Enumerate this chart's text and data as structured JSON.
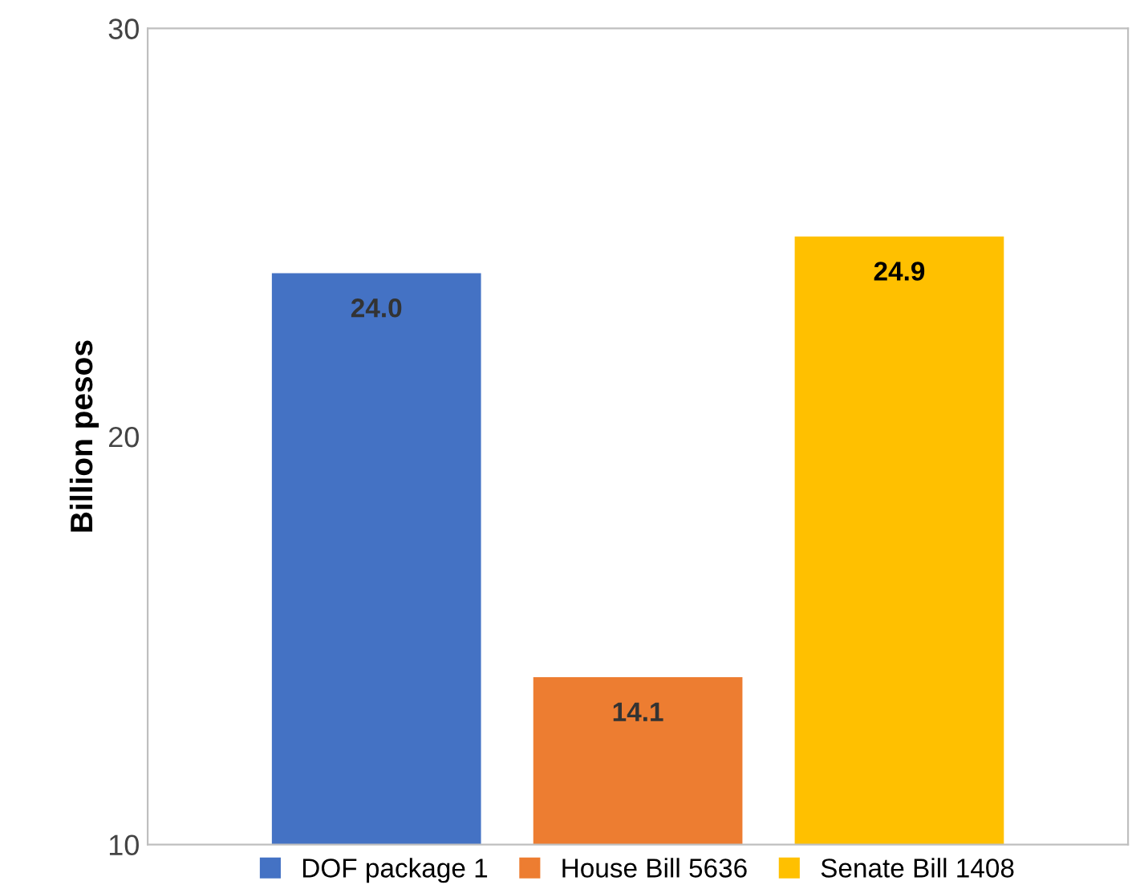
{
  "chart_data": {
    "type": "bar",
    "ylabel": "Billion pesos",
    "categories": [
      null
    ],
    "series": [
      {
        "name": "DOF package 1",
        "color": "#4472c4",
        "values": [
          24.0
        ],
        "value_labels": [
          "24.0"
        ]
      },
      {
        "name": "House Bill 5636",
        "color": "#ed7d31",
        "values": [
          14.1
        ],
        "value_labels": [
          "14.1"
        ]
      },
      {
        "name": "Senate Bill 1408",
        "color": "#ffc000",
        "values": [
          24.9
        ],
        "value_labels": [
          "24.9"
        ]
      }
    ],
    "ylim": [
      10,
      30
    ],
    "yticks": [
      10,
      20,
      30
    ],
    "grid": false,
    "legend": "bottom",
    "tick_labels": "y"
  }
}
